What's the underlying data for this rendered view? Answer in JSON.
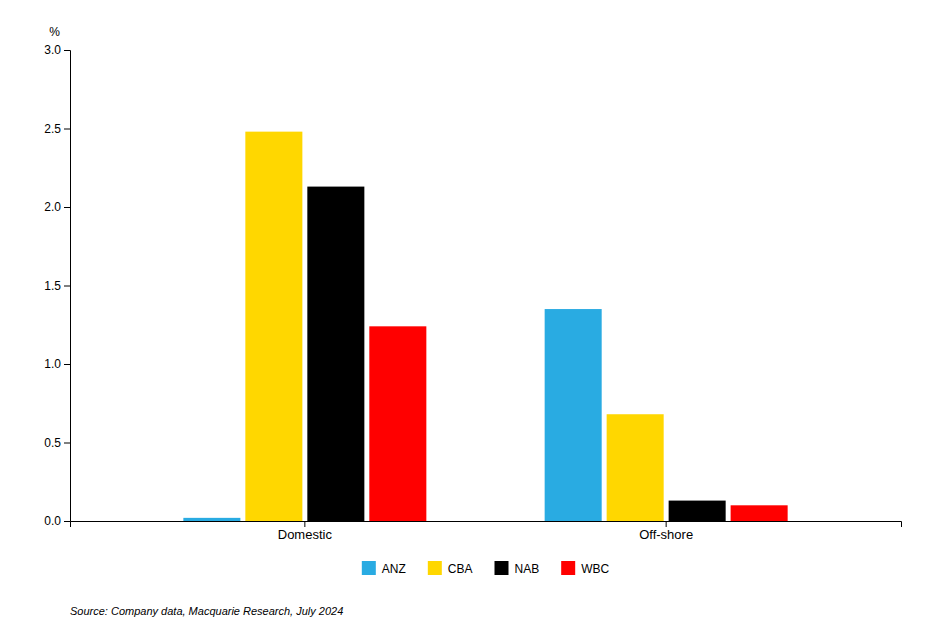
{
  "chart_data": {
    "type": "bar",
    "categories": [
      "Domestic",
      "Off-shore"
    ],
    "series": [
      {
        "name": "ANZ",
        "color": "#29ABE2",
        "values": [
          0.02,
          1.35
        ]
      },
      {
        "name": "CBA",
        "color": "#FFD700",
        "values": [
          2.48,
          0.68
        ]
      },
      {
        "name": "NAB",
        "color": "#000000",
        "values": [
          2.13,
          0.13
        ]
      },
      {
        "name": "WBC",
        "color": "#FF0000",
        "values": [
          1.24,
          0.1
        ]
      }
    ],
    "ylabel": "%",
    "ylim": [
      0,
      3.0
    ],
    "yticks": [
      {
        "value": 0.0,
        "label": "0.0"
      },
      0.5,
      {
        "value": 1.0,
        "label": "1.0"
      },
      1.5,
      {
        "value": 2.0,
        "label": "2.0"
      },
      2.5,
      {
        "value": 3.0,
        "label": "3.0"
      }
    ],
    "grid": false,
    "legend": "bottom",
    "annotations": [
      "Source: Company data, Macquarie Research, July 2024"
    ]
  }
}
